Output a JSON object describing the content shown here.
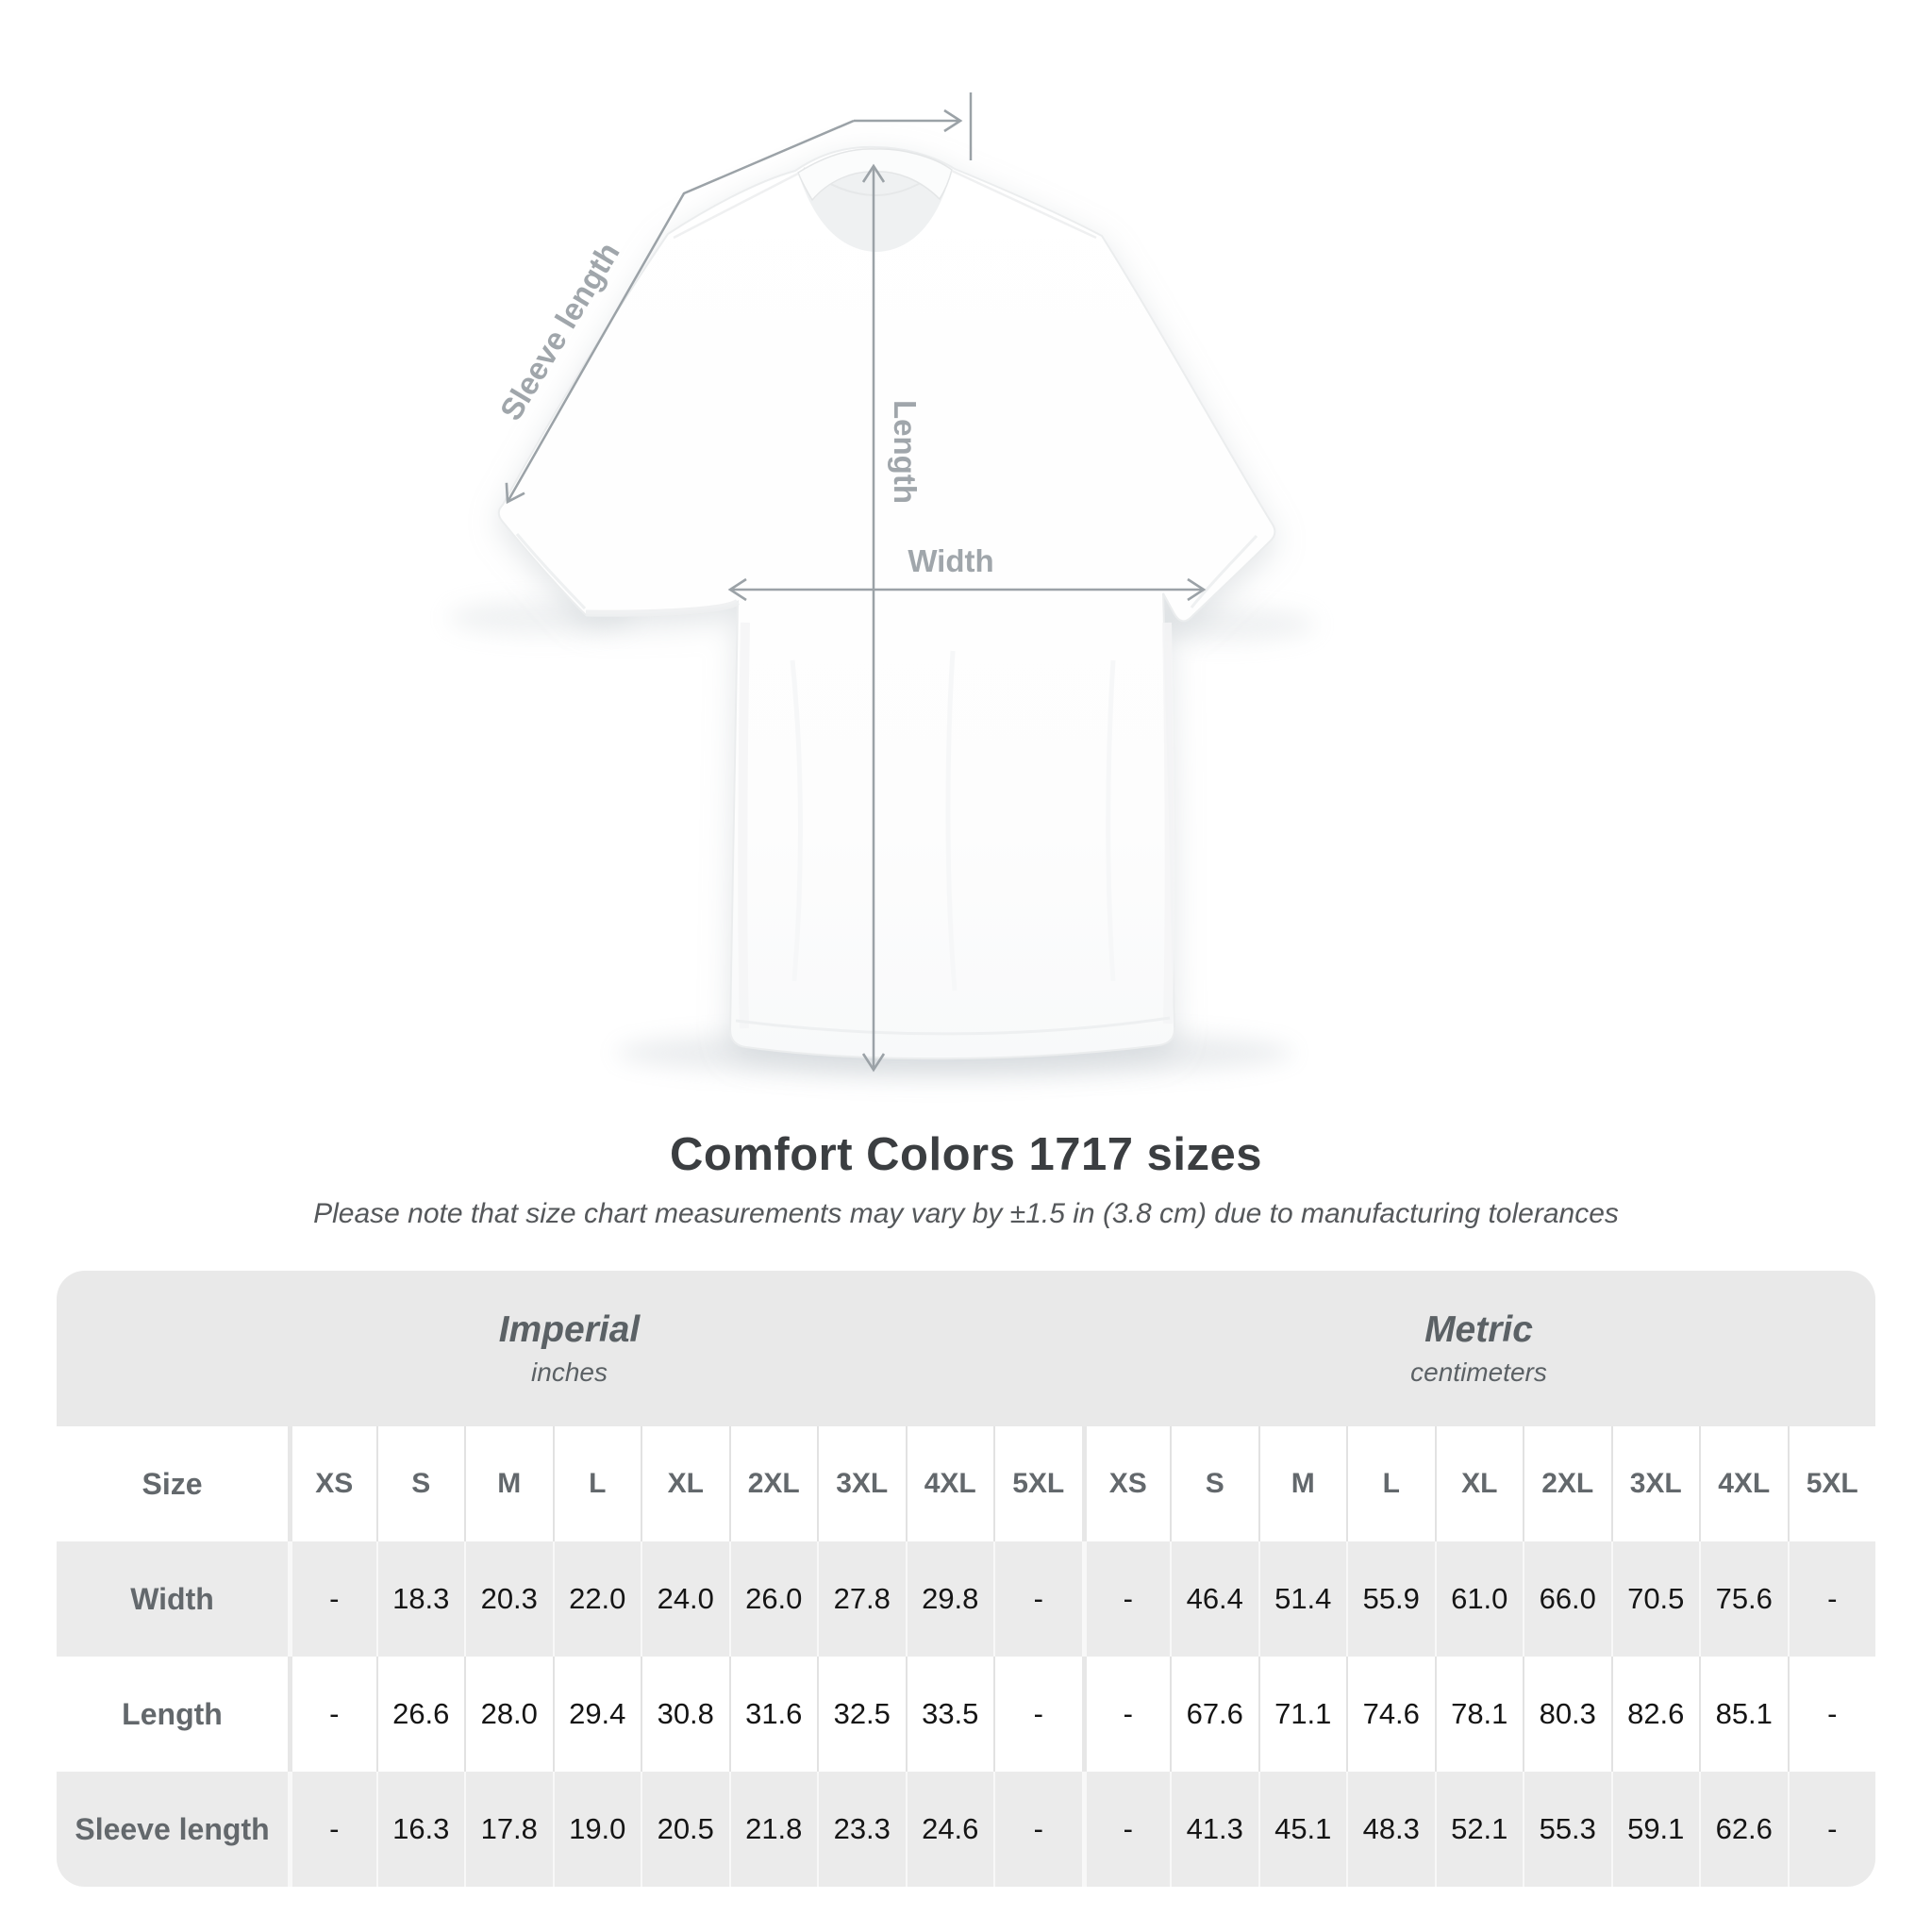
{
  "chart_data": {
    "type": "table",
    "title": "Comfort Colors 1717 sizes",
    "note": "Please note that size chart measurements may vary by ±1.5 in (3.8 cm) due to manufacturing tolerances",
    "corner_label": "Size",
    "sections": [
      {
        "title": "Imperial",
        "subtitle": "inches",
        "sizes": [
          "XS",
          "S",
          "M",
          "L",
          "XL",
          "2XL",
          "3XL",
          "4XL",
          "5XL"
        ]
      },
      {
        "title": "Metric",
        "subtitle": "centimeters",
        "sizes": [
          "XS",
          "S",
          "M",
          "L",
          "XL",
          "2XL",
          "3XL",
          "4XL",
          "5XL"
        ]
      }
    ],
    "rows": [
      {
        "label": "Width",
        "values": [
          [
            "-",
            "18.3",
            "20.3",
            "22.0",
            "24.0",
            "26.0",
            "27.8",
            "29.8",
            "-"
          ],
          [
            "-",
            "46.4",
            "51.4",
            "55.9",
            "61.0",
            "66.0",
            "70.5",
            "75.6",
            "-"
          ]
        ]
      },
      {
        "label": "Length",
        "values": [
          [
            "-",
            "26.6",
            "28.0",
            "29.4",
            "30.8",
            "31.6",
            "32.5",
            "33.5",
            "-"
          ],
          [
            "-",
            "67.6",
            "71.1",
            "74.6",
            "78.1",
            "80.3",
            "82.6",
            "85.1",
            "-"
          ]
        ]
      },
      {
        "label": "Sleeve length",
        "values": [
          [
            "-",
            "16.3",
            "17.8",
            "19.0",
            "20.5",
            "21.8",
            "23.3",
            "24.6",
            "-"
          ],
          [
            "-",
            "41.3",
            "45.1",
            "48.3",
            "52.1",
            "55.3",
            "59.1",
            "62.6",
            "-"
          ]
        ]
      }
    ]
  },
  "diagram": {
    "labels": {
      "sleeve_length": "Sleeve length",
      "length": "Length",
      "width": "Width"
    }
  },
  "colors": {
    "annotation_line": "#9ba2a7",
    "annotation_label": "#a0a6ab",
    "band_gray": "#e9e9e9",
    "row_stripe": "#ebebeb",
    "title_text": "#3b3e41",
    "value_text": "#151515",
    "header_text": "#63686c"
  }
}
